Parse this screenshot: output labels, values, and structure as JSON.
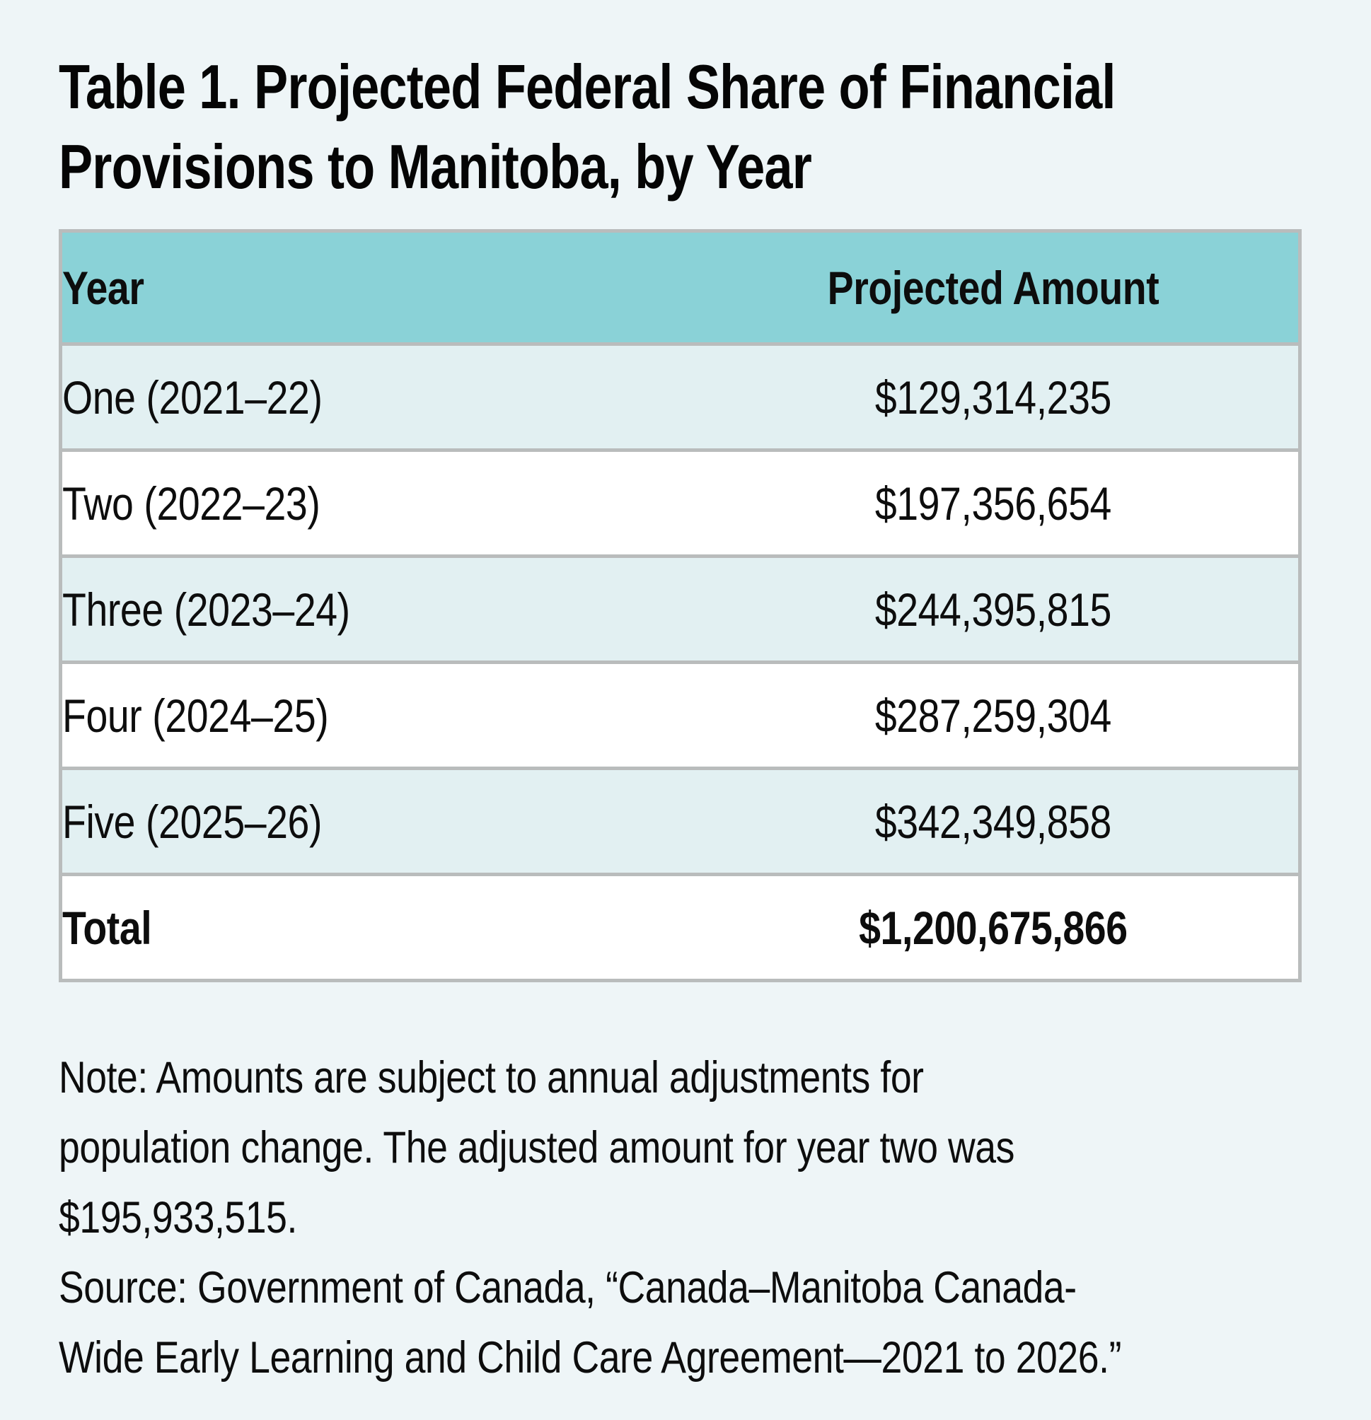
{
  "title": {
    "line1": "Table 1. Projected Federal Share of Financial",
    "line2": "Provisions to Manitoba, by Year"
  },
  "table": {
    "headers": [
      "Year",
      "Projected Amount"
    ],
    "rows": [
      {
        "year": "One (2021–22)",
        "amount": "$129,314,235"
      },
      {
        "year": "Two (2022–23)",
        "amount": "$197,356,654"
      },
      {
        "year": "Three (2023–24)",
        "amount": "$244,395,815"
      },
      {
        "year": "Four (2024–25)",
        "amount": "$287,259,304"
      },
      {
        "year": "Five (2025–26)",
        "amount": "$342,349,858"
      },
      {
        "year": "Total",
        "amount": "$1,200,675,866"
      }
    ]
  },
  "notes": {
    "note_lines": [
      "Note: Amounts are subject to annual adjustments for",
      "population change. The adjusted amount for year two was",
      "$195,933,515."
    ],
    "source_lines": [
      "Source: Government of Canada, “Canada–Manitoba Canada-",
      "Wide Early Learning and Child Care Agreement—2021 to 2026.”"
    ]
  },
  "colors": {
    "page_background": "#eef5f7",
    "header_teal": "#8ad2d7",
    "row_teal": "#e2f0f2",
    "row_white": "#ffffff",
    "border_gray": "#b9bcbc",
    "text": "#0d0d0d"
  }
}
